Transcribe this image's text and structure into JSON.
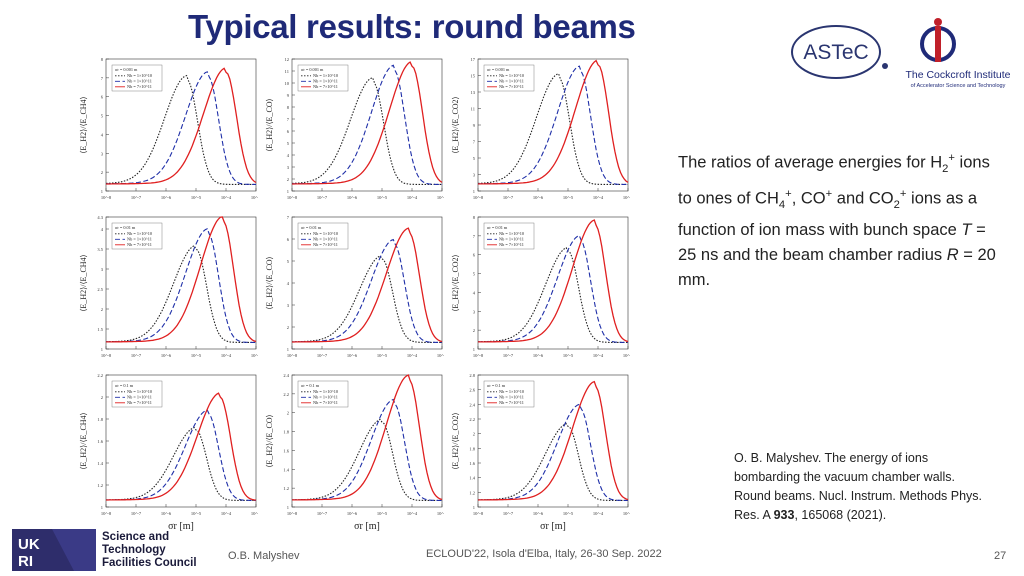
{
  "slide": {
    "title": "Typical results: round beams",
    "page_number": "27",
    "footer_author": "O.B. Malyshev",
    "footer_event": "ECLOUD'22, Isola d'Elba, Italy, 26-30 Sep. 2022"
  },
  "logos": {
    "astec": "ASTeC",
    "cockcroft_name": "The Cockcroft Institute",
    "cockcroft_sub": "of Accelerator Science and Technology",
    "stfc_line1": "Science and",
    "stfc_line2": "Technology",
    "stfc_line3": "Facilities Council",
    "ukri_text": "UKRI"
  },
  "description": {
    "p1": "The ratios of average energies for H",
    "p1_sub": "2",
    "p1_sup": "+",
    "p2": "ions to ones of CH",
    "p2_sub": "4",
    "p2_sup": "+",
    "p3": ", CO",
    "p3_sup": "+",
    "p4": " and CO",
    "p4_sub": "2",
    "p4_sup": "+",
    "p5": " ions as a function of ion mass with bunch space ",
    "p6_italic": "T",
    "p7": " = 25 ns and the beam chamber radius ",
    "p8_italic": "R",
    "p9": " = 20 mm."
  },
  "reference": {
    "text": "O. B. Malyshev. The energy of ions bombarding the vacuum chamber walls. Round beams. Nucl. Instrum. Methods Phys. Res. A ",
    "volume": "933",
    "rest": ", 165068 (2021)."
  },
  "chart_data": [
    {
      "type": "line",
      "row": 0,
      "col": 0,
      "ylabel": "⟨E_H2⟩/⟨E_CH4⟩",
      "sigma": "σr = 0.001 m",
      "ylim": [
        1,
        8
      ],
      "yticks": [
        "1",
        "2",
        "3",
        "4",
        "5",
        "6",
        "7",
        "8"
      ],
      "xticks": [
        "10^-8",
        "10^-7",
        "10^-6",
        "10^-5",
        "10^-4",
        "10^-3"
      ],
      "series": [
        {
          "name": "Nb = 1×10^10",
          "peak_x_log": -5.3,
          "peak_y": 6.9
        },
        {
          "name": "Nb = 1×10^11",
          "peak_x_log": -4.6,
          "peak_y": 7.1
        },
        {
          "name": "Nb = 7×10^11",
          "peak_x_log": -4.0,
          "peak_y": 7.3
        }
      ]
    },
    {
      "type": "line",
      "row": 0,
      "col": 1,
      "ylabel": "⟨E_H2⟩/⟨E_CO⟩",
      "sigma": "σr = 0.001 m",
      "ylim": [
        1,
        12
      ],
      "yticks": [
        "1",
        "2",
        "3",
        "4",
        "5",
        "6",
        "7",
        "8",
        "9",
        "10",
        "11",
        "12"
      ],
      "xticks": [
        "10^-8",
        "10^-7",
        "10^-6",
        "10^-5",
        "10^-4",
        "10^-3"
      ],
      "series": [
        {
          "name": "Nb = 1×10^10",
          "peak_x_log": -5.3,
          "peak_y": 10.1
        },
        {
          "name": "Nb = 1×10^11",
          "peak_x_log": -4.6,
          "peak_y": 11.1
        },
        {
          "name": "Nb = 7×10^11",
          "peak_x_log": -4.0,
          "peak_y": 11.4
        }
      ]
    },
    {
      "type": "line",
      "row": 0,
      "col": 2,
      "ylabel": "⟨E_H2⟩/⟨E_CO2⟩",
      "sigma": "σr = 0.001 m",
      "ylim": [
        1,
        17
      ],
      "yticks": [
        "1",
        "3",
        "5",
        "7",
        "9",
        "11",
        "13",
        "15",
        "17"
      ],
      "xticks": [
        "10^-8",
        "10^-7",
        "10^-6",
        "10^-5",
        "10^-4",
        "10^-3"
      ],
      "series": [
        {
          "name": "Nb = 1×10^10",
          "peak_x_log": -5.3,
          "peak_y": 14.7
        },
        {
          "name": "Nb = 1×10^11",
          "peak_x_log": -4.6,
          "peak_y": 15.6
        },
        {
          "name": "Nb = 7×10^11",
          "peak_x_log": -4.0,
          "peak_y": 16.3
        }
      ]
    },
    {
      "type": "line",
      "row": 1,
      "col": 0,
      "ylabel": "⟨E_H2⟩/⟨E_CH4⟩",
      "sigma": "σr = 0.01 m",
      "ylim": [
        1,
        4.3
      ],
      "yticks": [
        "1",
        "1.5",
        "2",
        "2.5",
        "3",
        "3.5",
        "4",
        "4.3"
      ],
      "xticks": [
        "10^-8",
        "10^-7",
        "10^-6",
        "10^-5",
        "10^-4",
        "10^-3"
      ],
      "series": [
        {
          "name": "Nb = 1×10^10",
          "peak_x_log": -5.0,
          "peak_y": 3.5
        },
        {
          "name": "Nb = 1×10^11",
          "peak_x_log": -4.6,
          "peak_y": 3.9
        },
        {
          "name": "Nb = 7×10^11",
          "peak_x_log": -4.1,
          "peak_y": 4.2
        }
      ]
    },
    {
      "type": "line",
      "row": 1,
      "col": 1,
      "ylabel": "⟨E_H2⟩/⟨E_CO⟩",
      "sigma": "σr = 0.01 m",
      "ylim": [
        1,
        7
      ],
      "yticks": [
        "1",
        "2",
        "3",
        "4",
        "5",
        "6",
        "7"
      ],
      "xticks": [
        "10^-8",
        "10^-7",
        "10^-6",
        "10^-5",
        "10^-4",
        "10^-3"
      ],
      "series": [
        {
          "name": "Nb = 1×10^10",
          "peak_x_log": -5.0,
          "peak_y": 5.1
        },
        {
          "name": "Nb = 1×10^11",
          "peak_x_log": -4.6,
          "peak_y": 5.8
        },
        {
          "name": "Nb = 7×10^11",
          "peak_x_log": -4.1,
          "peak_y": 6.3
        }
      ]
    },
    {
      "type": "line",
      "row": 1,
      "col": 2,
      "ylabel": "⟨E_H2⟩/⟨E_CO2⟩",
      "sigma": "σr = 0.01 m",
      "ylim": [
        1,
        8
      ],
      "yticks": [
        "1",
        "2",
        "3",
        "4",
        "5",
        "6",
        "7",
        "8"
      ],
      "xticks": [
        "10^-8",
        "10^-7",
        "10^-6",
        "10^-5",
        "10^-4",
        "10^-3"
      ],
      "series": [
        {
          "name": "Nb = 1×10^10",
          "peak_x_log": -5.0,
          "peak_y": 6.2
        },
        {
          "name": "Nb = 1×10^11",
          "peak_x_log": -4.6,
          "peak_y": 6.8
        },
        {
          "name": "Nb = 7×10^11",
          "peak_x_log": -4.1,
          "peak_y": 7.6
        }
      ]
    },
    {
      "type": "line",
      "row": 2,
      "col": 0,
      "ylabel": "⟨E_H2⟩/⟨E_CH4⟩",
      "sigma": "σr = 0.1 m",
      "ylim": [
        1,
        2.2
      ],
      "yticks": [
        "1",
        "1.2",
        "1.4",
        "1.6",
        "1.8",
        "2",
        "2.2"
      ],
      "xticks": [
        "10^-8",
        "10^-7",
        "10^-6",
        "10^-5",
        "10^-4",
        "10^-3"
      ],
      "series": [
        {
          "name": "Nb = 1×10^10",
          "peak_x_log": -5.0,
          "peak_y": 1.7
        },
        {
          "name": "Nb = 1×10^11",
          "peak_x_log": -4.6,
          "peak_y": 1.85
        },
        {
          "name": "Nb = 7×10^11",
          "peak_x_log": -4.2,
          "peak_y": 2.0
        }
      ]
    },
    {
      "type": "line",
      "row": 2,
      "col": 1,
      "ylabel": "⟨E_H2⟩/⟨E_CO⟩",
      "sigma": "σr = 0.1 m",
      "ylim": [
        1,
        2.4
      ],
      "yticks": [
        "1",
        "1.2",
        "1.4",
        "1.6",
        "1.8",
        "2",
        "2.2",
        "2.4"
      ],
      "xticks": [
        "10^-8",
        "10^-7",
        "10^-6",
        "10^-5",
        "10^-4",
        "10^-3"
      ],
      "series": [
        {
          "name": "Nb = 1×10^10",
          "peak_x_log": -5.0,
          "peak_y": 1.9
        },
        {
          "name": "Nb = 1×10^11",
          "peak_x_log": -4.6,
          "peak_y": 2.1
        },
        {
          "name": "Nb = 7×10^11",
          "peak_x_log": -4.1,
          "peak_y": 2.35
        }
      ]
    },
    {
      "type": "line",
      "row": 2,
      "col": 2,
      "ylabel": "⟨E_H2⟩/⟨E_CO2⟩",
      "sigma": "σr = 0.1 m",
      "ylim": [
        1,
        2.8
      ],
      "yticks": [
        "1",
        "1.2",
        "1.4",
        "1.6",
        "1.8",
        "2",
        "2.2",
        "2.4",
        "2.6",
        "2.8"
      ],
      "xticks": [
        "10^-8",
        "10^-7",
        "10^-6",
        "10^-5",
        "10^-4",
        "10^-3"
      ],
      "series": [
        {
          "name": "Nb = 1×10^10",
          "peak_x_log": -5.0,
          "peak_y": 2.1
        },
        {
          "name": "Nb = 1×10^11",
          "peak_x_log": -4.6,
          "peak_y": 2.35
        },
        {
          "name": "Nb = 7×10^11",
          "peak_x_log": -4.1,
          "peak_y": 2.65
        }
      ]
    }
  ],
  "xlabel": "σr [m]",
  "colors": {
    "title": "#1f2a78",
    "s1": "#222222",
    "s2": "#1f2fa8",
    "s3": "#e02020"
  }
}
